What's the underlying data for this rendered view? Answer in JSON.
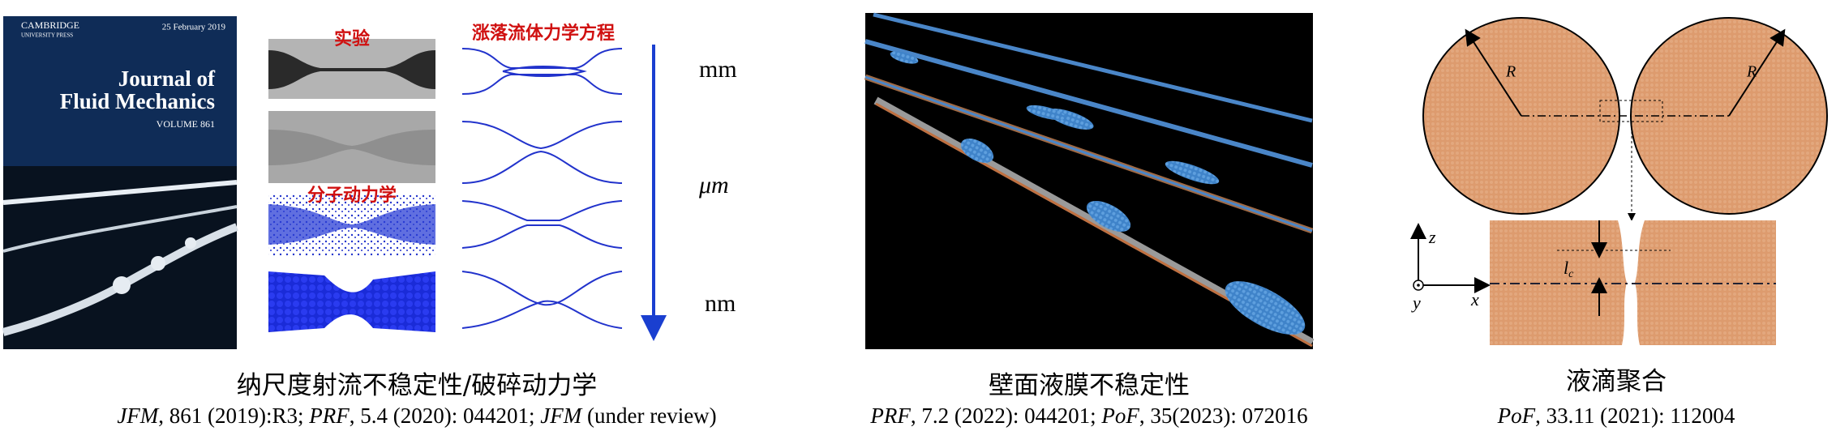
{
  "cover": {
    "publisher": "CAMBRIDGE",
    "publisher_sub": "UNIVERSITY PRESS",
    "date": "25 February 2019",
    "title_line1": "Journal of",
    "title_line2": "Fluid Mechanics",
    "volume": "VOLUME 861"
  },
  "jet_labels": {
    "experiment": "实验",
    "molecular_dynamics": "分子动力学",
    "equation": "涨落流体力学方程"
  },
  "scales": [
    "mm",
    "μm",
    "nm"
  ],
  "droplet_labels": {
    "radius_left": "R",
    "radius_right": "R",
    "length": "l",
    "length_sub": "c",
    "axis_z": "z",
    "axis_x": "x",
    "axis_y": "y"
  },
  "panels": [
    {
      "caption": "纳尺度射流不稳定性/破碎动力学",
      "citations": [
        {
          "journal": "JFM",
          "text": ", 861 (2019):R3;"
        },
        {
          "journal": "PRF",
          "text": ", 5.4 (2020): 044201;"
        },
        {
          "journal": "JFM",
          "text": " (under review)"
        }
      ]
    },
    {
      "caption": "壁面液膜不稳定性",
      "citations": [
        {
          "journal": "PRF",
          "text": ", 7.2 (2022): 044201;"
        },
        {
          "journal": "PoF",
          "text": ", 35(2023): 072016"
        }
      ]
    },
    {
      "caption": "液滴聚合",
      "citations": [
        {
          "journal": "PoF",
          "text": ", 33.11 (2021): 112004"
        }
      ]
    }
  ]
}
